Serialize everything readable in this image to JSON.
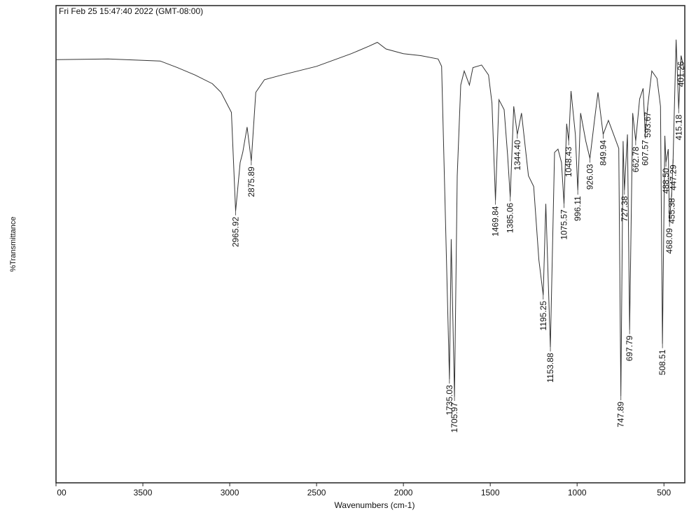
{
  "chart_data": {
    "type": "line",
    "title": "Fri Feb 25 15:47:40 2022 (GMT-08:00)",
    "x_label": "Wavenumbers (cm-1)",
    "y_label": "%Transmittance",
    "color": "#333333",
    "xlim": [
      4000,
      380
    ],
    "ylim": [
      36,
      107.5
    ],
    "xticks": [
      {
        "value": 4000,
        "label": "00"
      },
      3500,
      3000,
      2500,
      2000,
      1500,
      1000,
      500
    ],
    "x": [
      4000,
      3700,
      3400,
      3300,
      3200,
      3100,
      3050,
      3030,
      2990,
      2965.92,
      2940,
      2925,
      2900,
      2875.89,
      2850,
      2800,
      2700,
      2500,
      2300,
      2200,
      2150,
      2100,
      2000,
      1900,
      1800,
      1780,
      1760,
      1735.03,
      1725,
      1705.97,
      1690,
      1670,
      1650,
      1620,
      1600,
      1550,
      1510,
      1490,
      1469.84,
      1450,
      1420,
      1400,
      1385.06,
      1365,
      1344.4,
      1320,
      1280,
      1250,
      1220,
      1195.25,
      1180,
      1153.88,
      1130,
      1110,
      1090,
      1075.57,
      1060,
      1048.43,
      1035,
      1010,
      996.11,
      980,
      950,
      926.03,
      900,
      880,
      849.94,
      820,
      790,
      760,
      747.89,
      735,
      727.38,
      710,
      697.79,
      680,
      662.78,
      640,
      620,
      607.57,
      593.67,
      570,
      540,
      520,
      508.51,
      495,
      488.5,
      475,
      468.09,
      455.38,
      447.29,
      430,
      415.18,
      401.26,
      385
    ],
    "values": [
      99.4,
      99.5,
      99.2,
      98.2,
      97.1,
      95.8,
      94.5,
      93.5,
      91.5,
      76.7,
      84.0,
      85.5,
      89.3,
      84.2,
      94.5,
      96.4,
      97.1,
      98.4,
      100.3,
      101.4,
      102.0,
      101.0,
      100.3,
      100.0,
      99.5,
      98.4,
      77.5,
      51.5,
      72.5,
      48.9,
      82.0,
      95.6,
      97.7,
      95.6,
      98.2,
      98.6,
      97.1,
      92.9,
      78.3,
      93.4,
      91.9,
      85.0,
      78.8,
      92.4,
      88.2,
      91.4,
      82.0,
      80.4,
      69.4,
      64.1,
      77.8,
      56.3,
      85.5,
      86.0,
      84.0,
      77.8,
      89.8,
      87.2,
      94.7,
      88.2,
      79.8,
      91.4,
      87.2,
      84.6,
      90.3,
      94.5,
      88.2,
      90.3,
      88.2,
      86.1,
      49.0,
      87.2,
      79.8,
      88.2,
      58.9,
      91.4,
      87.2,
      93.5,
      95.1,
      88.2,
      92.4,
      97.7,
      96.6,
      92.4,
      56.8,
      88.0,
      84.0,
      86.0,
      75.0,
      79.5,
      84.5,
      102.4,
      92.0,
      100.0,
      98.0
    ],
    "peaks": [
      2965.92,
      2875.89,
      {
        "value": 1735.03,
        "label": "1735.03"
      },
      1705.97,
      1469.84,
      1385.06,
      {
        "value": 1344.4,
        "label": "1344.40"
      },
      1195.25,
      1153.88,
      1075.57,
      1048.43,
      996.11,
      926.03,
      849.94,
      747.89,
      727.38,
      697.79,
      662.78,
      607.57,
      593.67,
      508.51,
      {
        "value": 488.5,
        "label": "488.50"
      },
      468.09,
      455.38,
      447.29,
      415.18,
      401.26
    ]
  }
}
